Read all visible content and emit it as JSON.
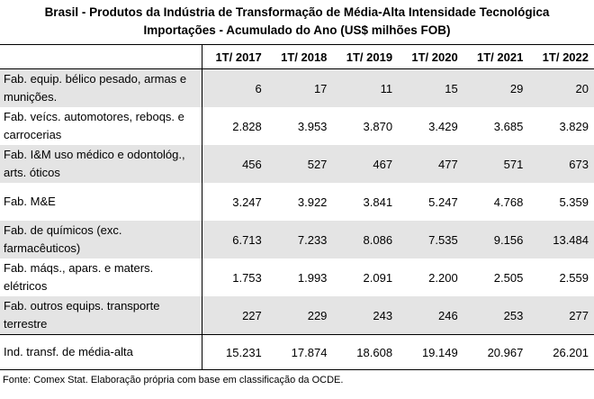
{
  "title": {
    "line1": "Brasil - Produtos da Indústria de Transformação de Média-Alta Intensidade Tecnológica",
    "line2": "Importações - Acumulado do Ano (US$ milhões FOB)"
  },
  "table": {
    "columns": [
      "",
      "1T/ 2017",
      "1T/ 2018",
      "1T/ 2019",
      "1T/ 2020",
      "1T/ 2021",
      "1T/ 2022"
    ],
    "rows": [
      {
        "label": "Fab. equip. bélico pesado, armas e munições.",
        "values": [
          "6",
          "17",
          "11",
          "15",
          "29",
          "20"
        ]
      },
      {
        "label": "Fab. veícs. automotores, reboqs. e carrocerias",
        "values": [
          "2.828",
          "3.953",
          "3.870",
          "3.429",
          "3.685",
          "3.829"
        ]
      },
      {
        "label": "Fab. I&M uso médico e odontológ., arts. óticos",
        "values": [
          "456",
          "527",
          "467",
          "477",
          "571",
          "673"
        ]
      },
      {
        "label": "Fab. M&E",
        "values": [
          "3.247",
          "3.922",
          "3.841",
          "5.247",
          "4.768",
          "5.359"
        ]
      },
      {
        "label": "Fab. de químicos (exc. farmacêuticos)",
        "values": [
          "6.713",
          "7.233",
          "8.086",
          "7.535",
          "9.156",
          "13.484"
        ]
      },
      {
        "label": "Fab. máqs., apars. e maters. elétricos",
        "values": [
          "1.753",
          "1.993",
          "2.091",
          "2.200",
          "2.505",
          "2.559"
        ]
      },
      {
        "label": "Fab. outros equips. transporte terrestre",
        "values": [
          "227",
          "229",
          "243",
          "246",
          "253",
          "277"
        ]
      }
    ],
    "total": {
      "label": "Ind. transf. de média-alta",
      "values": [
        "15.231",
        "17.874",
        "18.608",
        "19.149",
        "20.967",
        "26.201"
      ]
    }
  },
  "source": "Fonte: Comex Stat. Elaboração própria com base em classificação da OCDE."
}
